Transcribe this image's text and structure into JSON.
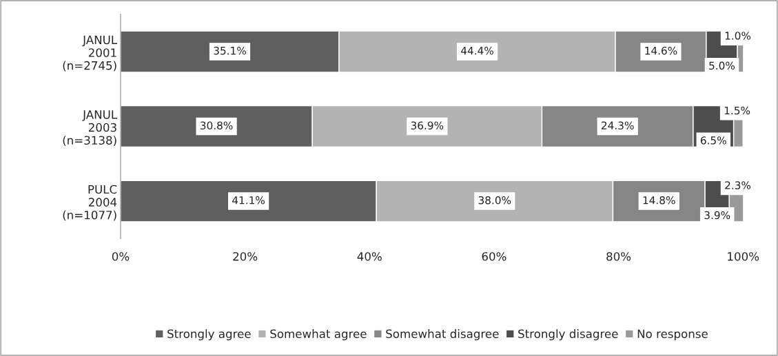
{
  "chart_data": {
    "type": "bar",
    "orientation": "horizontal",
    "stacked": true,
    "categories": [
      "JANUL\n2001\n(n=2745)",
      "JANUL\n2003\n(n=3138)",
      "PULC\n2004\n(n=1077)"
    ],
    "series": [
      {
        "name": "Strongly agree",
        "color": "#5f5f5f",
        "values": [
          35.1,
          30.8,
          41.1
        ],
        "value_labels": [
          "35.1%",
          "30.8%",
          "41.1%"
        ]
      },
      {
        "name": "Somewhat agree",
        "color": "#b3b3b3",
        "values": [
          44.4,
          36.9,
          38.0
        ],
        "value_labels": [
          "44.4%",
          "36.9%",
          "38.0%"
        ]
      },
      {
        "name": "Somewhat disagree",
        "color": "#868686",
        "values": [
          14.6,
          24.3,
          14.8
        ],
        "value_labels": [
          "14.6%",
          "24.3%",
          "14.8%"
        ]
      },
      {
        "name": "Strongly disagree",
        "color": "#4d4d4d",
        "values": [
          5.0,
          6.5,
          3.9
        ],
        "value_labels": [
          "5.0%",
          "6.5%",
          "3.9%"
        ]
      },
      {
        "name": "No response",
        "color": "#9a9a9a",
        "values": [
          1.0,
          1.5,
          2.3
        ],
        "value_labels": [
          "1.0%",
          "1.5%",
          "2.3%"
        ]
      }
    ],
    "xlim": [
      0,
      100
    ],
    "xticks": [
      {
        "value": 0,
        "label": "0%"
      },
      {
        "value": 20,
        "label": "20%"
      },
      {
        "value": 40,
        "label": "40%"
      },
      {
        "value": 60,
        "label": "60%"
      },
      {
        "value": 80,
        "label": "80%"
      },
      {
        "value": 100,
        "label": "100%"
      }
    ],
    "grid": false,
    "legend": "bottom"
  }
}
